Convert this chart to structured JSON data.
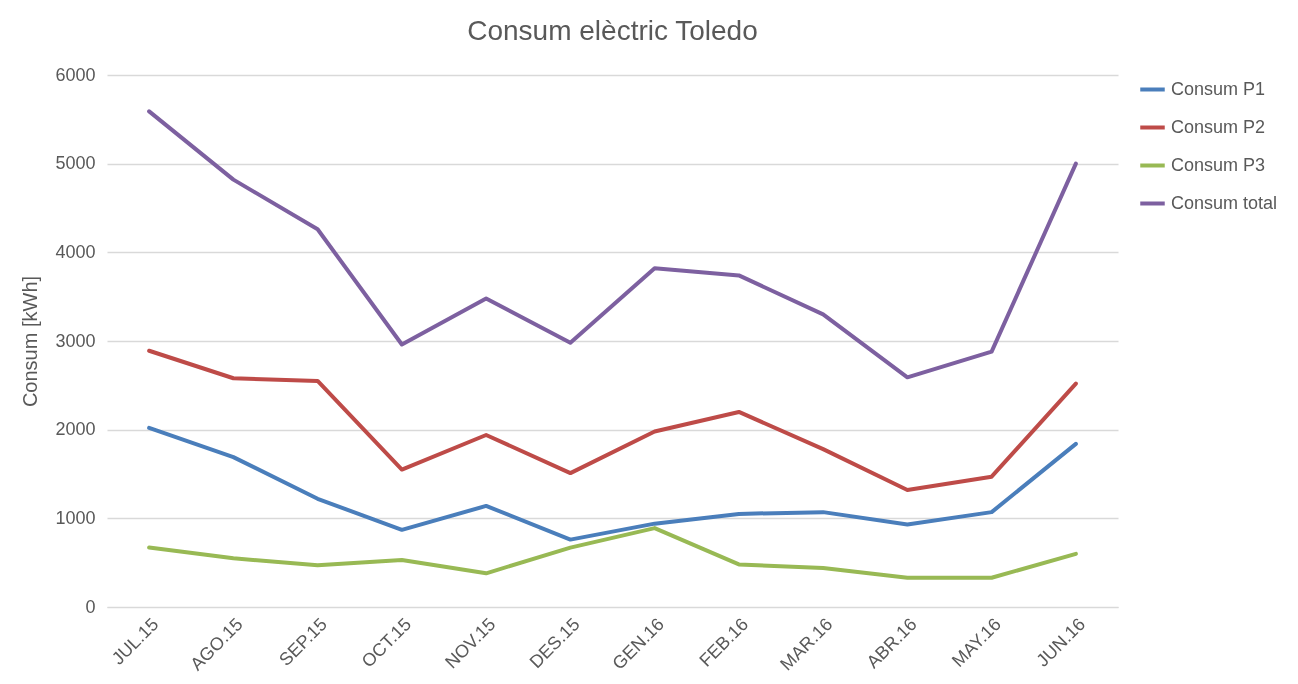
{
  "chart_data": {
    "type": "line",
    "title": "Consum elèctric Toledo",
    "ylabel": "Consum [kWh]",
    "categories": [
      "JUL.15",
      "AGO.15",
      "SEP.15",
      "OCT.15",
      "NOV.15",
      "DES.15",
      "GEN.16",
      "FEB.16",
      "MAR.16",
      "ABR.16",
      "MAY.16",
      "JUN.16"
    ],
    "series": [
      {
        "name": "Consum P1",
        "color": "#4a7ebb",
        "values": [
          2020,
          1690,
          1220,
          870,
          1140,
          760,
          940,
          1050,
          1070,
          930,
          1070,
          1840
        ]
      },
      {
        "name": "Consum P2",
        "color": "#be4b48",
        "values": [
          2890,
          2580,
          2550,
          1550,
          1940,
          1510,
          1980,
          2200,
          1780,
          1320,
          1470,
          2520
        ]
      },
      {
        "name": "Consum P3",
        "color": "#98b954",
        "values": [
          670,
          550,
          470,
          530,
          380,
          670,
          890,
          480,
          440,
          330,
          330,
          600
        ]
      },
      {
        "name": "Consum total",
        "color": "#7d60a0",
        "values": [
          5590,
          4820,
          4260,
          2960,
          3480,
          2980,
          3820,
          3740,
          3300,
          2590,
          2880,
          5000
        ]
      }
    ],
    "ylim": [
      0,
      6000
    ],
    "yticks": [
      0,
      1000,
      2000,
      3000,
      4000,
      5000,
      6000
    ],
    "grid": "y",
    "legend": "right",
    "line_style": "solid",
    "marker": "none"
  }
}
